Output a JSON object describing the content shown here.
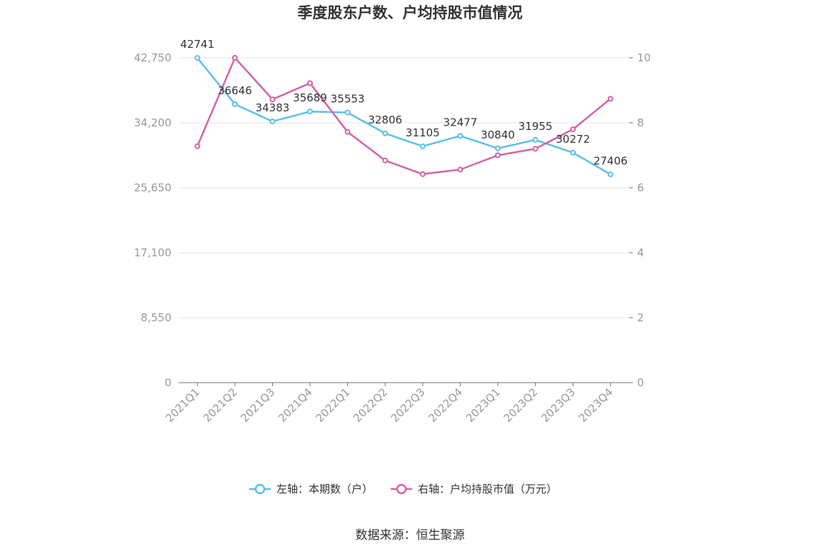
{
  "chart_data": {
    "type": "line",
    "title": "季度股东户数、户均持股市值情况",
    "categories": [
      "2021Q1",
      "2021Q2",
      "2021Q3",
      "2021Q4",
      "2022Q1",
      "2022Q2",
      "2022Q3",
      "2022Q4",
      "2023Q1",
      "2023Q2",
      "2023Q3",
      "2023Q4"
    ],
    "series": [
      {
        "name": "左轴：本期数（户）",
        "axis": "left",
        "color": "#5bc0eb",
        "values": [
          42741,
          36646,
          34383,
          35689,
          35553,
          32806,
          31105,
          32477,
          30840,
          31955,
          30272,
          27406
        ],
        "data_labels": [
          "42741",
          "36646",
          "34383",
          "35689",
          "35553",
          "32806",
          "31105",
          "32477",
          "30840",
          "31955",
          "30272",
          "27406"
        ]
      },
      {
        "name": "右轴：户均持股市值（万元）",
        "axis": "right",
        "color": "#d264a8",
        "values": [
          7.28,
          10.0,
          8.72,
          9.22,
          7.72,
          6.84,
          6.42,
          6.56,
          7.0,
          7.2,
          7.8,
          8.74
        ]
      }
    ],
    "left_axis": {
      "ylim": [
        0,
        42750
      ],
      "ticks": [
        0,
        8550,
        17100,
        25650,
        34200,
        42750
      ],
      "tick_labels": [
        "0",
        "8,550",
        "17,100",
        "25,650",
        "34,200",
        "42,750"
      ]
    },
    "right_axis": {
      "ylim": [
        0,
        10
      ],
      "ticks": [
        0,
        2,
        4,
        6,
        8,
        10
      ],
      "tick_labels": [
        "0",
        "2",
        "4",
        "6",
        "8",
        "10"
      ]
    },
    "grid": true,
    "legend_position": "bottom-center"
  },
  "source": "数据来源：恒生聚源",
  "colors": {
    "grid": "#e0e6f1",
    "axis": "#6e7079",
    "tick_text": "#999999"
  }
}
